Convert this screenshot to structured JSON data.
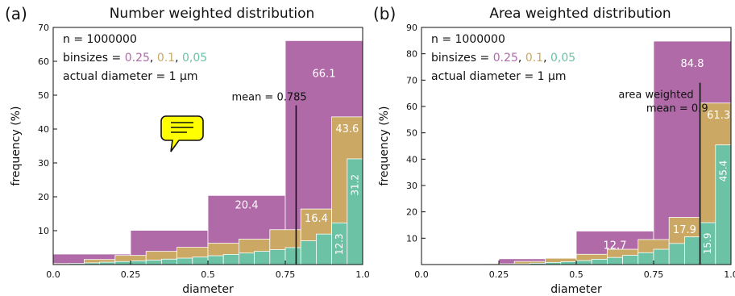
{
  "chart_data": [
    {
      "panel_label": "(a)",
      "type": "bar",
      "title": "Number weighted distribution",
      "xlabel": "diameter",
      "ylabel": "frequency (%)",
      "xlim": [
        0.0,
        1.0
      ],
      "ylim": [
        0,
        70
      ],
      "xticks": [
        "0.0",
        "0.25",
        "0.5",
        "0.75",
        "1.0"
      ],
      "yticks": [
        "10",
        "20",
        "30",
        "40",
        "50",
        "60",
        "70"
      ],
      "info_lines": [
        "n = 1000000",
        "binsizes = ",
        "actual diameter = 1 μm"
      ],
      "mean_line": {
        "x": 0.785,
        "y_top": 47,
        "label": "mean = 0.785"
      },
      "series": [
        {
          "binsize_label": "0.25",
          "color": "#b06aa8",
          "bin_width": 0.25,
          "values": [
            3.1,
            10.1,
            20.4,
            66.1
          ],
          "data_labels": [
            {
              "text": "20.4",
              "x": 0.625,
              "y": 17.7
            },
            {
              "text": "66.1",
              "x": 0.875,
              "y": 56.5
            }
          ]
        },
        {
          "binsize_label": "0.1",
          "color": "#cba965",
          "bin_width": 0.1,
          "values": [
            0.3,
            1.5,
            2.7,
            3.9,
            5.1,
            6.3,
            7.5,
            10.3,
            16.4,
            43.6
          ],
          "data_labels": [
            {
              "text": "16.4",
              "x": 0.85,
              "y": 13.8
            },
            {
              "text": "43.6",
              "x": 0.95,
              "y": 40.2
            }
          ]
        },
        {
          "binsize_label": "0,05",
          "color": "#6cc2a4",
          "bin_width": 0.05,
          "values": [
            0.1,
            0.3,
            0.5,
            0.7,
            0.9,
            1.1,
            1.3,
            1.6,
            1.9,
            2.2,
            2.6,
            3.0,
            3.4,
            3.9,
            4.4,
            5.0,
            7.0,
            9.0,
            12.3,
            31.2
          ],
          "data_labels": [
            {
              "text": "12.3",
              "x": 0.925,
              "y": 6.0,
              "rotate": true
            },
            {
              "text": "31.2",
              "x": 0.975,
              "y": 23.5,
              "rotate": true
            }
          ]
        }
      ]
    },
    {
      "panel_label": "(b)",
      "type": "bar",
      "title": "Area weighted distribution",
      "xlabel": "diameter",
      "ylabel": "frequency (%)",
      "xlim": [
        0.0,
        1.0
      ],
      "ylim": [
        0,
        90
      ],
      "xticks": [
        "0.0",
        "0.25",
        "0.5",
        "0.75",
        "1.0"
      ],
      "yticks": [
        "10",
        "20",
        "30",
        "40",
        "50",
        "60",
        "70",
        "80",
        "90"
      ],
      "info_lines": [
        "n = 1000000",
        "binsizes = ",
        "actual diameter = 1 μm"
      ],
      "mean_line": {
        "x": 0.9,
        "y_top": 69,
        "label_lines": [
          "area weighted",
          "mean = 0.9"
        ]
      },
      "series": [
        {
          "binsize_label": "0.25",
          "color": "#b06aa8",
          "bin_width": 0.25,
          "values": [
            0,
            2.2,
            12.7,
            84.8
          ],
          "data_labels": [
            {
              "text": "12.7",
              "x": 0.625,
              "y": 7.5
            },
            {
              "text": "84.8",
              "x": 0.875,
              "y": 76.5
            }
          ]
        },
        {
          "binsize_label": "0.1",
          "color": "#cba965",
          "bin_width": 0.1,
          "values": [
            0,
            0,
            0.3,
            1.2,
            2.4,
            3.9,
            5.8,
            9.5,
            17.9,
            61.3
          ],
          "data_labels": [
            {
              "text": "17.9",
              "x": 0.85,
              "y": 13.5
            },
            {
              "text": "61.3",
              "x": 0.96,
              "y": 57.0
            }
          ]
        },
        {
          "binsize_label": "0,05",
          "color": "#6cc2a4",
          "bin_width": 0.05,
          "values": [
            0,
            0,
            0,
            0,
            0,
            0.1,
            0.3,
            0.5,
            0.8,
            1.1,
            1.5,
            2.0,
            2.7,
            3.5,
            4.5,
            5.8,
            8.0,
            10.5,
            15.9,
            45.4
          ],
          "data_labels": [
            {
              "text": "15.9",
              "x": 0.925,
              "y": 8.0,
              "rotate": true
            },
            {
              "text": "45.4",
              "x": 0.975,
              "y": 35.5,
              "rotate": true
            }
          ]
        }
      ]
    }
  ],
  "speech_bubble": {
    "icon": "chat-bubble-icon",
    "fill": "#ffff00"
  }
}
